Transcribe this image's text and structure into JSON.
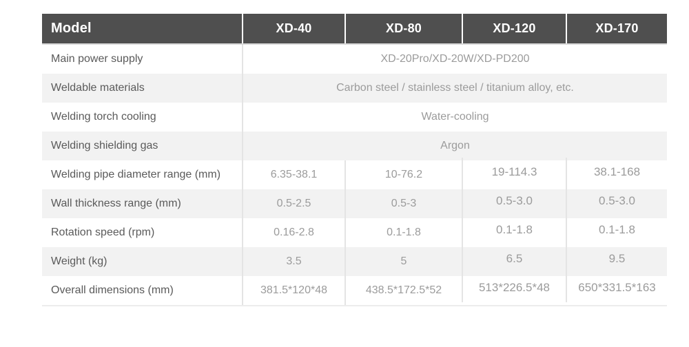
{
  "table": {
    "header": {
      "model_label": "Model",
      "columns": [
        "XD-40",
        "XD-80",
        "XD-120",
        "XD-170"
      ]
    },
    "spanned_rows": [
      {
        "label": "Main power supply",
        "value": "XD-20Pro/XD-20W/XD-PD200"
      },
      {
        "label": "Weldable materials",
        "value": "Carbon steel / stainless steel / titanium alloy, etc."
      },
      {
        "label": "Welding torch cooling",
        "value": "Water-cooling"
      },
      {
        "label": "Welding shielding gas",
        "value": "Argon"
      }
    ],
    "model_rows": [
      {
        "label": "Welding pipe diameter range (mm)",
        "values": [
          "6.35-38.1",
          "10-76.2",
          "19-114.3",
          "38.1-168"
        ]
      },
      {
        "label": "Wall thickness range (mm)",
        "values": [
          "0.5-2.5",
          "0.5-3",
          "0.5-3.0",
          "0.5-3.0"
        ]
      },
      {
        "label": "Rotation speed (rpm)",
        "values": [
          "0.16-2.8",
          "0.1-1.8",
          "0.1-1.8",
          "0.1-1.8"
        ]
      },
      {
        "label": "Weight (kg)",
        "values": [
          "3.5",
          "5",
          "6.5",
          "9.5"
        ]
      },
      {
        "label": "Overall dimensions (mm)",
        "values": [
          "381.5*120*48",
          "438.5*172.5*52",
          "513*226.5*48",
          "650*331.5*163"
        ]
      }
    ],
    "colors": {
      "header_bg": "#4f4f4f",
      "header_text": "#ffffff",
      "row_stripe": "#f2f2f2",
      "label_text": "#5a5a5a",
      "value_text": "#9b9b9b",
      "separator": "#e4e4e4"
    }
  }
}
